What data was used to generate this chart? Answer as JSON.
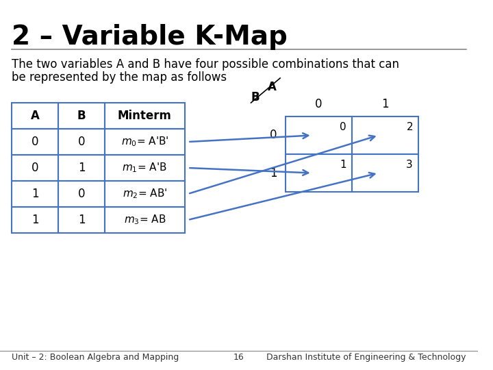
{
  "title": "2 – Variable K-Map",
  "subtitle_line1": "The two variables A and B have four possible combinations that can",
  "subtitle_line2": "be represented by the map as follows",
  "bg_color": "#ffffff",
  "title_color": "#000000",
  "text_color": "#000000",
  "footer_left": "Unit – 2: Boolean Algebra and Mapping",
  "footer_center": "16",
  "footer_right": "Darshan Institute of Engineering & Technology",
  "table_headers": [
    "A",
    "B",
    "Minterm"
  ],
  "table_rows": [
    [
      "0",
      "0",
      "m₀= A’B’"
    ],
    [
      "0",
      "1",
      "m₁= A’B"
    ],
    [
      "1",
      "0",
      "m₂= AB’"
    ],
    [
      "1",
      "1",
      "m₃= AB"
    ]
  ],
  "kmap_A_label": "A",
  "kmap_B_label": "B",
  "kmap_col_vals": [
    "0",
    "1"
  ],
  "kmap_row_vals": [
    "0",
    "1"
  ],
  "kmap_cell_vals": [
    [
      "0",
      "2"
    ],
    [
      "1",
      "3"
    ]
  ],
  "table_border_color": "#4472c4",
  "arrow_color": "#4472c4",
  "kmap_border_color": "#4472c4",
  "separator_color": "#000000"
}
